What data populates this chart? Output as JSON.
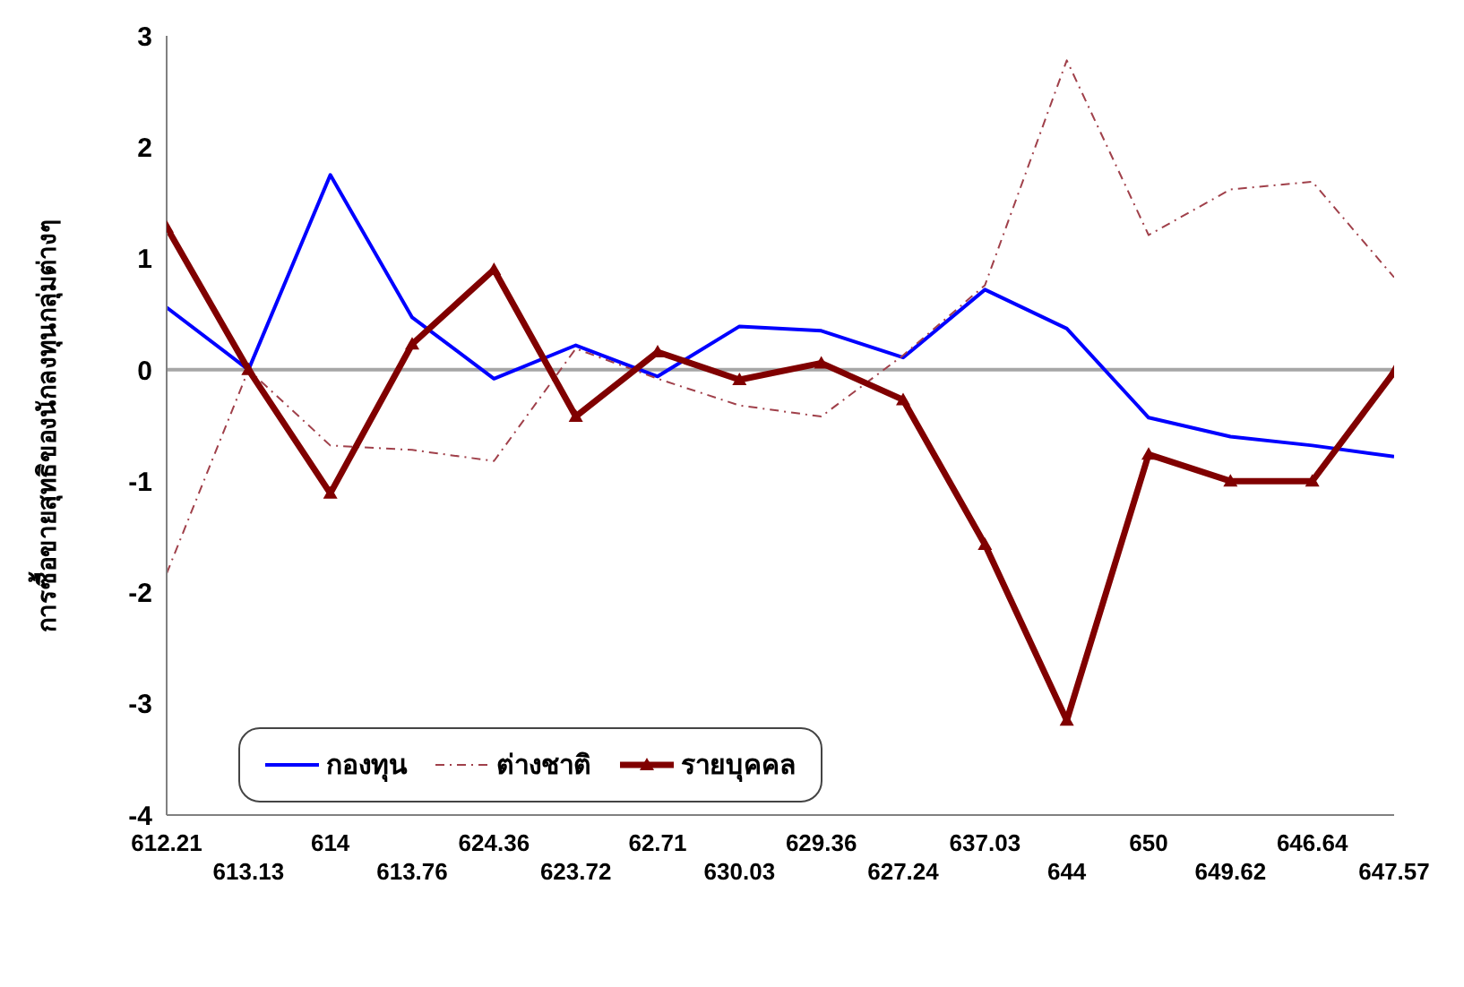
{
  "chart_data": {
    "type": "line",
    "ylabel": "การซื้อขายสุทธิของนักลงทุนกลุ่มต่างๆ",
    "categories": [
      "612.21",
      "613.13",
      "614",
      "613.76",
      "624.36",
      "623.72",
      "62.71",
      "630.03",
      "629.36",
      "627.24",
      "637.03",
      "644",
      "650",
      "649.62",
      "646.64",
      "647.57"
    ],
    "series": [
      {
        "name": "กองทุน",
        "color": "#0000ff",
        "line_style": "solid",
        "marker": "none",
        "values": [
          0.56,
          0,
          1.75,
          0.47,
          -0.08,
          0.22,
          -0.06,
          0.39,
          0.35,
          0.11,
          0.72,
          0.37,
          -0.43,
          -0.6,
          -0.68,
          -0.78
        ]
      },
      {
        "name": "ต่างชาติ",
        "color": "#a0404a",
        "line_style": "dashed",
        "marker": "none",
        "values": [
          -1.83,
          0,
          -0.68,
          -0.72,
          -0.82,
          0.19,
          -0.08,
          -0.32,
          -0.42,
          0.13,
          0.76,
          2.78,
          1.21,
          1.62,
          1.69,
          0.83
        ]
      },
      {
        "name": "รายบุคคล",
        "color": "#800000",
        "line_style": "solid",
        "marker": "triangle",
        "values": [
          1.28,
          0,
          -1.11,
          0.23,
          0.9,
          -0.42,
          0.16,
          -0.09,
          0.06,
          -0.27,
          -1.57,
          -3.15,
          -0.76,
          -1.0,
          -1.0,
          -0.02
        ]
      }
    ],
    "ylim": [
      -4,
      3
    ],
    "yticks": [
      -4,
      -3,
      -2,
      -1,
      0,
      1,
      2,
      3
    ],
    "ref_lines": [
      {
        "axis": "y",
        "value": 0,
        "color": "#a6a6a6"
      }
    ],
    "grid": false,
    "legend": "bottom left"
  }
}
